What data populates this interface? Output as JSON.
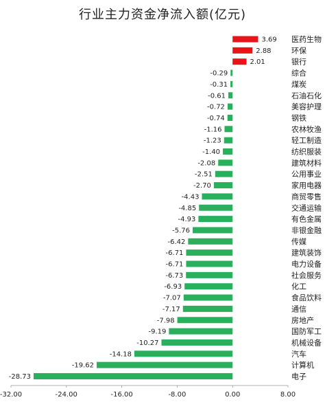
{
  "chart_data": {
    "type": "bar",
    "orientation": "horizontal",
    "title": "行业主力资金净流入额(亿元)",
    "categories": [
      "医药生物",
      "环保",
      "银行",
      "综合",
      "煤炭",
      "石油石化",
      "美容护理",
      "钢铁",
      "农林牧渔",
      "轻工制造",
      "纺织服装",
      "建筑材料",
      "公用事业",
      "家用电器",
      "商贸零售",
      "交通运输",
      "有色金属",
      "非银金融",
      "传媒",
      "建筑装饰",
      "电力设备",
      "社会服务",
      "化工",
      "食品饮料",
      "通信",
      "房地产",
      "国防军工",
      "机械设备",
      "汽车",
      "计算机",
      "电子"
    ],
    "values": [
      3.69,
      2.88,
      2.01,
      -0.29,
      -0.31,
      -0.61,
      -0.72,
      -0.74,
      -1.16,
      -1.23,
      -1.4,
      -2.08,
      -2.51,
      -2.7,
      -4.43,
      -4.85,
      -4.93,
      -5.76,
      -6.42,
      -6.71,
      -6.71,
      -6.73,
      -6.93,
      -7.07,
      -7.17,
      -7.98,
      -9.19,
      -10.27,
      -14.18,
      -19.62,
      -28.73
    ],
    "value_labels": [
      "3.69",
      "2.88",
      "2.01",
      "-0.29",
      "-0.31",
      "-0.61",
      "-0.72",
      "-0.74",
      "-1.16",
      "-1.23",
      "-1.40",
      "-2.08",
      "-2.51",
      "-2.70",
      "-4.43",
      "-4.85",
      "-4.93",
      "-5.76",
      "-6.42",
      "-6.71",
      "-6.71",
      "-6.73",
      "-6.93",
      "-7.07",
      "-7.17",
      "-7.98",
      "-9.19",
      "-10.27",
      "-14.18",
      "-19.62",
      "-28.73"
    ],
    "xlim": [
      -32,
      8
    ],
    "xticks": [
      -32,
      -24,
      -16,
      -8,
      0,
      8
    ],
    "xtick_labels": [
      "-32.00",
      "-24.00",
      "-16.00",
      "-8.00",
      "0.00",
      "8.00"
    ],
    "grid": false,
    "colors": {
      "positive": "#e8141a",
      "negative": "#2ab05c"
    }
  }
}
